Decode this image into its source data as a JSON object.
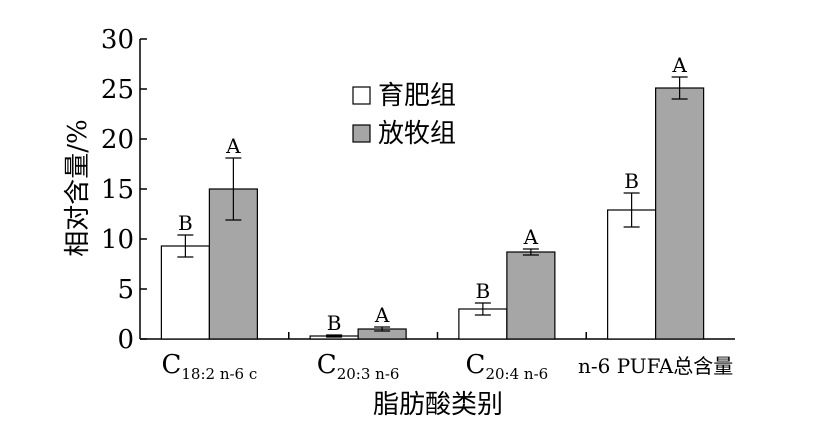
{
  "chart_data": {
    "type": "bar",
    "xlabel": "脂肪酸类别",
    "ylabel": "相对含量/%",
    "ylim": [
      0,
      30
    ],
    "yticks": [
      0,
      5,
      10,
      15,
      20,
      25,
      30
    ],
    "grid": false,
    "legend_position": "top-center",
    "categories": [
      {
        "base": "C",
        "sub": "18:2 n-6 c"
      },
      {
        "base": "C",
        "sub": "20:3 n-6"
      },
      {
        "base": "C",
        "sub": "20:4 n-6"
      },
      {
        "base": "n-6 PUFA总含量",
        "sub": ""
      }
    ],
    "series": [
      {
        "name": "育肥组",
        "color": "#ffffff",
        "values": [
          9.3,
          0.3,
          3.0,
          12.9
        ],
        "errors": [
          1.1,
          0.1,
          0.6,
          1.7
        ],
        "labels": [
          "B",
          "B",
          "B",
          "B"
        ]
      },
      {
        "name": "放牧组",
        "color": "#a6a6a6",
        "values": [
          15.0,
          1.0,
          8.7,
          25.1
        ],
        "errors": [
          3.1,
          0.2,
          0.3,
          1.1
        ],
        "labels": [
          "A",
          "A",
          "A",
          "A"
        ]
      }
    ]
  }
}
